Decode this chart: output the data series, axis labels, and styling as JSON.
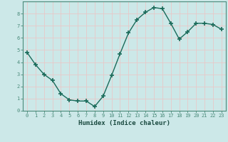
{
  "x": [
    0,
    1,
    2,
    3,
    4,
    5,
    6,
    7,
    8,
    9,
    10,
    11,
    12,
    13,
    14,
    15,
    16,
    17,
    18,
    19,
    20,
    21,
    22,
    23
  ],
  "y": [
    4.8,
    3.8,
    3.0,
    2.5,
    1.4,
    0.9,
    0.8,
    0.8,
    0.35,
    1.2,
    2.9,
    4.7,
    6.4,
    7.5,
    8.1,
    8.5,
    8.4,
    7.2,
    5.9,
    6.5,
    7.2,
    7.2,
    7.1,
    6.7
  ],
  "line_color": "#1a6b5a",
  "marker": "+",
  "marker_size": 4,
  "marker_lw": 1.2,
  "line_width": 1.0,
  "xlabel": "Humidex (Indice chaleur)",
  "xlim": [
    -0.5,
    23.5
  ],
  "ylim": [
    0,
    9
  ],
  "yticks": [
    0,
    1,
    2,
    3,
    4,
    5,
    6,
    7,
    8
  ],
  "xticks": [
    0,
    1,
    2,
    3,
    4,
    5,
    6,
    7,
    8,
    9,
    10,
    11,
    12,
    13,
    14,
    15,
    16,
    17,
    18,
    19,
    20,
    21,
    22,
    23
  ],
  "bg_color": "#cce8e8",
  "grid_color": "#e8c8c8",
  "axes_edge_color": "#4a8a7a",
  "tick_label_color": "#1a4a40",
  "xlabel_color": "#1a4a40",
  "tick_fontsize": 5.0,
  "xlabel_fontsize": 6.5
}
